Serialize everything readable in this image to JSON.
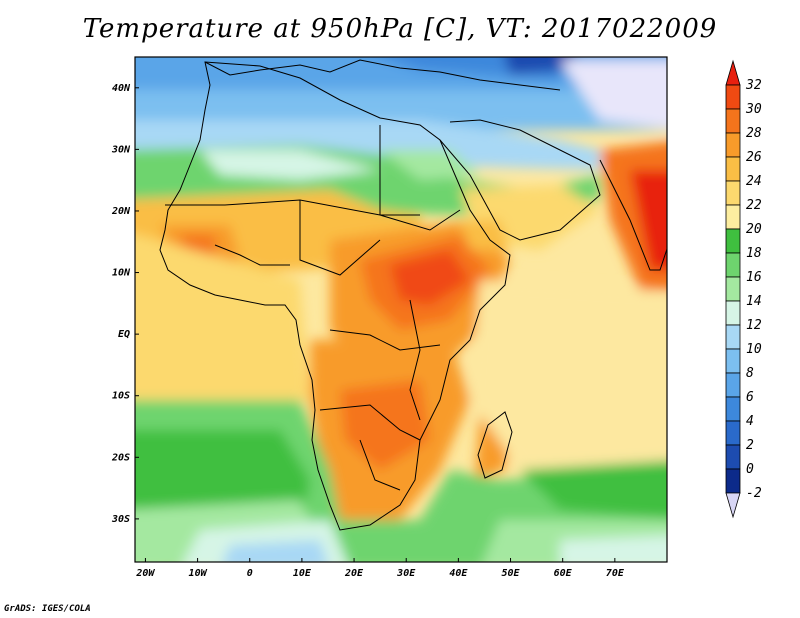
{
  "title": "Temperature at 950hPa [C], VT: 2017022009",
  "credit": "GrADS: IGES/COLA",
  "map": {
    "lat_labels": [
      "40N",
      "30N",
      "20N",
      "10N",
      "EQ",
      "10S",
      "20S",
      "30S"
    ],
    "lon_labels": [
      "20W",
      "10W",
      "0",
      "10E",
      "20E",
      "30E",
      "40E",
      "50E",
      "60E",
      "70E"
    ],
    "lon_range": [
      -22,
      80
    ],
    "lat_range": [
      -37,
      45
    ]
  },
  "colorbar": {
    "labels": [
      "32",
      "30",
      "28",
      "26",
      "24",
      "22",
      "20",
      "18",
      "16",
      "14",
      "12",
      "10",
      "8",
      "6",
      "4",
      "2",
      "0",
      "-2"
    ],
    "colors": [
      "#e8200f",
      "#f04a12",
      "#f5741c",
      "#f89b2a",
      "#fabe45",
      "#fcd96e",
      "#fdeea0",
      "#3fbf3f",
      "#6ed46e",
      "#a4e8a0",
      "#d6f5e6",
      "#a8d8f5",
      "#7cbff0",
      "#5aa5e8",
      "#3d88dc",
      "#2a6acb",
      "#1d4cb0",
      "#0c2a8a"
    ],
    "low_color": "#d8d6f5"
  }
}
